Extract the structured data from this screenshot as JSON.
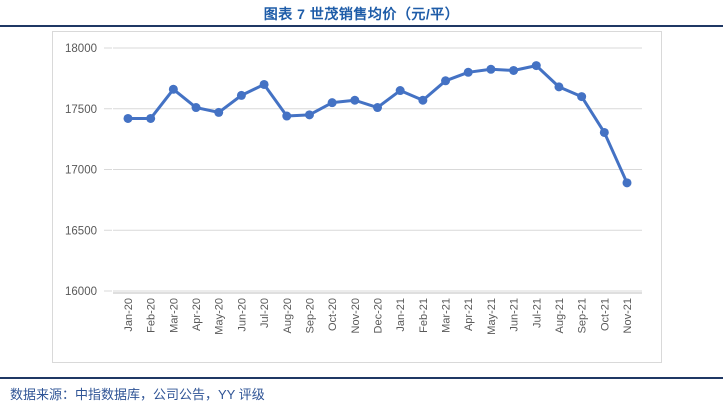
{
  "header": {
    "title": "图表 7  世茂销售均价（元/平）"
  },
  "footer": {
    "source": "数据来源：中指数据库，公司公告，YY 评级"
  },
  "colors": {
    "title": "#1e5ca8",
    "footer_text": "#2f5496",
    "divider": "#1f3864",
    "series": "#4472c4",
    "grid": "#d9d9d9",
    "axis": "#bfbfbf",
    "tick_label": "#595959",
    "frame": "#d9d9d9"
  },
  "chart_data": {
    "type": "line",
    "title": "图表 7  世茂销售均价（元/平）",
    "categories": [
      "Jan-20",
      "Feb-20",
      "Mar-20",
      "Apr-20",
      "May-20",
      "Jun-20",
      "Jul-20",
      "Aug-20",
      "Sep-20",
      "Oct-20",
      "Nov-20",
      "Dec-20",
      "Jan-21",
      "Feb-21",
      "Mar-21",
      "Apr-21",
      "May-21",
      "Jun-21",
      "Jul-21",
      "Aug-21",
      "Sep-21",
      "Oct-21",
      "Nov-21"
    ],
    "values": [
      17420,
      17420,
      17660,
      17510,
      17470,
      17610,
      17700,
      17440,
      17450,
      17550,
      17570,
      17510,
      17650,
      17570,
      17730,
      17800,
      17825,
      17815,
      17855,
      17680,
      17600,
      17305,
      16890
    ],
    "xlabel": "",
    "ylabel": "",
    "ylim": [
      16000,
      18000
    ],
    "yticks": [
      16000,
      16500,
      17000,
      17500,
      18000
    ],
    "grid": "horizontal",
    "legend": "none",
    "marker": "circle",
    "x_label_rotation": -90
  }
}
